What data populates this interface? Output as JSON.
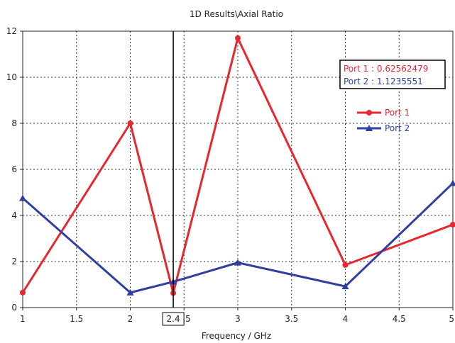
{
  "chart_data": {
    "type": "line",
    "title": "1D Results\\Axial Ratio",
    "xlabel": "Frequency / GHz",
    "ylabel": "",
    "xlim": [
      1,
      5
    ],
    "ylim": [
      0,
      12
    ],
    "x_ticks": [
      "1",
      "1.5",
      "2",
      "2.5",
      "3",
      "3.5",
      "4",
      "4.5",
      "5"
    ],
    "y_ticks": [
      "0",
      "2",
      "4",
      "6",
      "8",
      "10",
      "12"
    ],
    "grid": true,
    "legend_position": "top-right",
    "marker_line": {
      "x": 2.4,
      "label": "2.4"
    },
    "readout": [
      {
        "text": "Port 1 : 0.62562479",
        "color": "#e8262e"
      },
      {
        "text": "Port 2 : 1.1235551",
        "color": "#2e3f9e"
      }
    ],
    "series": [
      {
        "name": "Port 1",
        "color": "#e8262e",
        "marker": "circle",
        "x": [
          1,
          2,
          2.4,
          3,
          4,
          5
        ],
        "y": [
          0.65,
          8.0,
          0.63,
          11.7,
          1.85,
          3.6
        ]
      },
      {
        "name": "Port 2",
        "color": "#2e3f9e",
        "marker": "triangle",
        "x": [
          1,
          2,
          2.4,
          3,
          4,
          5
        ],
        "y": [
          4.75,
          0.65,
          1.12,
          1.95,
          0.92,
          5.4
        ]
      }
    ]
  }
}
